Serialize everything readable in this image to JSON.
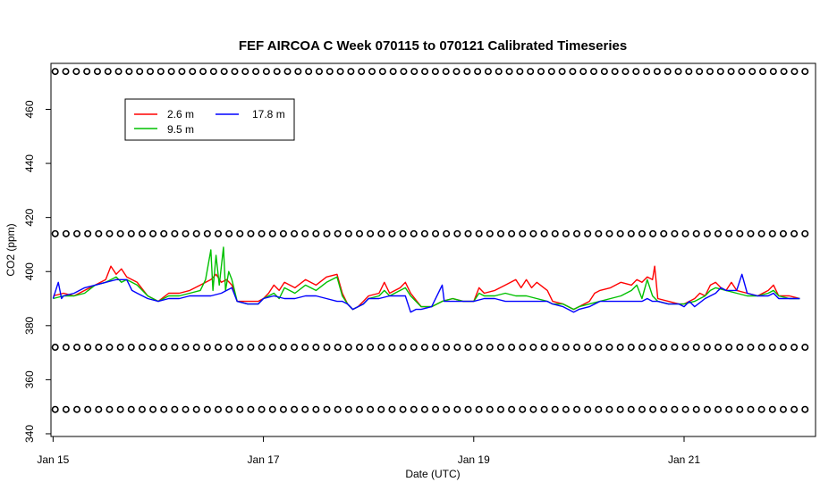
{
  "chart_data": {
    "type": "line",
    "title": "FEF AIRCOA C  Week 070115 to 070121  Calibrated Timeseries",
    "xlabel": "Date (UTC)",
    "ylabel": "CO2 (ppm)",
    "x_ticks": [
      {
        "day": 15,
        "label": "Jan 15"
      },
      {
        "day": 17,
        "label": "Jan 17"
      },
      {
        "day": 19,
        "label": "Jan 19"
      },
      {
        "day": 21,
        "label": "Jan 21"
      }
    ],
    "y_ticks": [
      340,
      360,
      380,
      400,
      420,
      440,
      460
    ],
    "xlim": [
      14.98,
      22.25
    ],
    "ylim": [
      339,
      477
    ],
    "grid": false,
    "legend_position": "top-left",
    "series": [
      {
        "name": "2.6 m",
        "color": "#ff0000",
        "points": [
          [
            15.0,
            391
          ],
          [
            15.1,
            392
          ],
          [
            15.2,
            391
          ],
          [
            15.3,
            393
          ],
          [
            15.4,
            395
          ],
          [
            15.5,
            397
          ],
          [
            15.55,
            402
          ],
          [
            15.6,
            399
          ],
          [
            15.65,
            401
          ],
          [
            15.7,
            398
          ],
          [
            15.8,
            396
          ],
          [
            15.9,
            391
          ],
          [
            16.0,
            389
          ],
          [
            16.1,
            392
          ],
          [
            16.2,
            392
          ],
          [
            16.3,
            393
          ],
          [
            16.4,
            395
          ],
          [
            16.5,
            397
          ],
          [
            16.55,
            399
          ],
          [
            16.6,
            396
          ],
          [
            16.65,
            397
          ],
          [
            16.7,
            395
          ],
          [
            16.75,
            389
          ],
          [
            16.85,
            389
          ],
          [
            16.95,
            389
          ],
          [
            17.0,
            390
          ],
          [
            17.05,
            392
          ],
          [
            17.1,
            395
          ],
          [
            17.15,
            393
          ],
          [
            17.2,
            396
          ],
          [
            17.3,
            394
          ],
          [
            17.4,
            397
          ],
          [
            17.5,
            395
          ],
          [
            17.6,
            398
          ],
          [
            17.7,
            399
          ],
          [
            17.75,
            392
          ],
          [
            17.8,
            388
          ],
          [
            17.85,
            386
          ],
          [
            17.9,
            387
          ],
          [
            17.95,
            389
          ],
          [
            18.0,
            391
          ],
          [
            18.1,
            392
          ],
          [
            18.15,
            396
          ],
          [
            18.2,
            392
          ],
          [
            18.3,
            394
          ],
          [
            18.35,
            396
          ],
          [
            18.4,
            392
          ],
          [
            18.5,
            387
          ],
          [
            18.6,
            387
          ],
          [
            18.7,
            389
          ],
          [
            18.8,
            390
          ],
          [
            18.9,
            389
          ],
          [
            19.0,
            389
          ],
          [
            19.05,
            394
          ],
          [
            19.1,
            392
          ],
          [
            19.2,
            393
          ],
          [
            19.3,
            395
          ],
          [
            19.4,
            397
          ],
          [
            19.45,
            394
          ],
          [
            19.5,
            397
          ],
          [
            19.55,
            394
          ],
          [
            19.6,
            396
          ],
          [
            19.7,
            393
          ],
          [
            19.75,
            389
          ],
          [
            19.85,
            388
          ],
          [
            19.95,
            386
          ],
          [
            20.0,
            387
          ],
          [
            20.1,
            389
          ],
          [
            20.15,
            392
          ],
          [
            20.2,
            393
          ],
          [
            20.3,
            394
          ],
          [
            20.4,
            396
          ],
          [
            20.5,
            395
          ],
          [
            20.55,
            397
          ],
          [
            20.6,
            396
          ],
          [
            20.65,
            398
          ],
          [
            20.7,
            397
          ],
          [
            20.72,
            402
          ],
          [
            20.75,
            390
          ],
          [
            20.85,
            389
          ],
          [
            20.95,
            388
          ],
          [
            21.0,
            388
          ],
          [
            21.1,
            390
          ],
          [
            21.15,
            392
          ],
          [
            21.2,
            391
          ],
          [
            21.25,
            395
          ],
          [
            21.3,
            396
          ],
          [
            21.35,
            394
          ],
          [
            21.4,
            393
          ],
          [
            21.45,
            396
          ],
          [
            21.5,
            393
          ],
          [
            21.6,
            392
          ],
          [
            21.7,
            391
          ],
          [
            21.8,
            393
          ],
          [
            21.85,
            395
          ],
          [
            21.9,
            391
          ],
          [
            22.0,
            391
          ],
          [
            22.1,
            390
          ]
        ]
      },
      {
        "name": "9.5 m",
        "color": "#00c000",
        "points": [
          [
            15.0,
            390
          ],
          [
            15.1,
            391
          ],
          [
            15.2,
            391
          ],
          [
            15.3,
            392
          ],
          [
            15.4,
            395
          ],
          [
            15.5,
            396
          ],
          [
            15.6,
            398
          ],
          [
            15.65,
            396
          ],
          [
            15.7,
            397
          ],
          [
            15.8,
            395
          ],
          [
            15.9,
            391
          ],
          [
            16.0,
            389
          ],
          [
            16.1,
            391
          ],
          [
            16.2,
            391
          ],
          [
            16.3,
            392
          ],
          [
            16.4,
            393
          ],
          [
            16.45,
            397
          ],
          [
            16.5,
            408
          ],
          [
            16.52,
            393
          ],
          [
            16.55,
            406
          ],
          [
            16.58,
            395
          ],
          [
            16.62,
            409
          ],
          [
            16.64,
            393
          ],
          [
            16.67,
            400
          ],
          [
            16.7,
            397
          ],
          [
            16.75,
            389
          ],
          [
            16.85,
            388
          ],
          [
            16.95,
            388
          ],
          [
            17.0,
            390
          ],
          [
            17.1,
            392
          ],
          [
            17.15,
            390
          ],
          [
            17.2,
            394
          ],
          [
            17.3,
            392
          ],
          [
            17.4,
            395
          ],
          [
            17.5,
            393
          ],
          [
            17.6,
            396
          ],
          [
            17.7,
            398
          ],
          [
            17.75,
            391
          ],
          [
            17.8,
            388
          ],
          [
            17.85,
            386
          ],
          [
            17.9,
            387
          ],
          [
            17.95,
            388
          ],
          [
            18.0,
            390
          ],
          [
            18.1,
            391
          ],
          [
            18.15,
            393
          ],
          [
            18.2,
            391
          ],
          [
            18.3,
            393
          ],
          [
            18.35,
            394
          ],
          [
            18.4,
            391
          ],
          [
            18.5,
            387
          ],
          [
            18.6,
            387
          ],
          [
            18.7,
            389
          ],
          [
            18.8,
            390
          ],
          [
            18.9,
            389
          ],
          [
            19.0,
            389
          ],
          [
            19.05,
            392
          ],
          [
            19.1,
            391
          ],
          [
            19.2,
            391
          ],
          [
            19.3,
            392
          ],
          [
            19.4,
            391
          ],
          [
            19.5,
            391
          ],
          [
            19.6,
            390
          ],
          [
            19.7,
            389
          ],
          [
            19.75,
            388
          ],
          [
            19.85,
            388
          ],
          [
            19.95,
            386
          ],
          [
            20.0,
            387
          ],
          [
            20.1,
            388
          ],
          [
            20.2,
            389
          ],
          [
            20.3,
            390
          ],
          [
            20.4,
            391
          ],
          [
            20.5,
            393
          ],
          [
            20.55,
            395
          ],
          [
            20.6,
            390
          ],
          [
            20.65,
            397
          ],
          [
            20.7,
            391
          ],
          [
            20.75,
            389
          ],
          [
            20.85,
            388
          ],
          [
            20.95,
            388
          ],
          [
            21.0,
            388
          ],
          [
            21.1,
            389
          ],
          [
            21.2,
            391
          ],
          [
            21.25,
            393
          ],
          [
            21.3,
            394
          ],
          [
            21.4,
            393
          ],
          [
            21.5,
            392
          ],
          [
            21.6,
            391
          ],
          [
            21.7,
            391
          ],
          [
            21.8,
            392
          ],
          [
            21.85,
            393
          ],
          [
            21.9,
            391
          ],
          [
            22.0,
            390
          ],
          [
            22.1,
            390
          ]
        ]
      },
      {
        "name": "17.8 m",
        "color": "#0000ff",
        "points": [
          [
            15.0,
            390
          ],
          [
            15.05,
            396
          ],
          [
            15.08,
            390
          ],
          [
            15.1,
            391
          ],
          [
            15.2,
            392
          ],
          [
            15.3,
            394
          ],
          [
            15.4,
            395
          ],
          [
            15.5,
            396
          ],
          [
            15.6,
            397
          ],
          [
            15.7,
            397
          ],
          [
            15.75,
            393
          ],
          [
            15.8,
            392
          ],
          [
            15.9,
            390
          ],
          [
            16.0,
            389
          ],
          [
            16.1,
            390
          ],
          [
            16.2,
            390
          ],
          [
            16.3,
            391
          ],
          [
            16.4,
            391
          ],
          [
            16.5,
            391
          ],
          [
            16.6,
            392
          ],
          [
            16.65,
            393
          ],
          [
            16.7,
            394
          ],
          [
            16.75,
            389
          ],
          [
            16.85,
            388
          ],
          [
            16.95,
            388
          ],
          [
            17.0,
            390
          ],
          [
            17.1,
            391
          ],
          [
            17.2,
            390
          ],
          [
            17.3,
            390
          ],
          [
            17.4,
            391
          ],
          [
            17.5,
            391
          ],
          [
            17.6,
            390
          ],
          [
            17.7,
            389
          ],
          [
            17.75,
            389
          ],
          [
            17.8,
            388
          ],
          [
            17.85,
            386
          ],
          [
            17.9,
            387
          ],
          [
            17.95,
            388
          ],
          [
            18.0,
            390
          ],
          [
            18.1,
            390
          ],
          [
            18.2,
            391
          ],
          [
            18.3,
            391
          ],
          [
            18.35,
            391
          ],
          [
            18.4,
            385
          ],
          [
            18.45,
            386
          ],
          [
            18.5,
            386
          ],
          [
            18.6,
            387
          ],
          [
            18.7,
            395
          ],
          [
            18.72,
            389
          ],
          [
            18.8,
            389
          ],
          [
            18.9,
            389
          ],
          [
            19.0,
            389
          ],
          [
            19.1,
            390
          ],
          [
            19.2,
            390
          ],
          [
            19.3,
            389
          ],
          [
            19.4,
            389
          ],
          [
            19.5,
            389
          ],
          [
            19.6,
            389
          ],
          [
            19.7,
            389
          ],
          [
            19.75,
            388
          ],
          [
            19.85,
            387
          ],
          [
            19.95,
            385
          ],
          [
            20.0,
            386
          ],
          [
            20.1,
            387
          ],
          [
            20.2,
            389
          ],
          [
            20.3,
            389
          ],
          [
            20.4,
            389
          ],
          [
            20.5,
            389
          ],
          [
            20.55,
            389
          ],
          [
            20.6,
            389
          ],
          [
            20.65,
            390
          ],
          [
            20.7,
            389
          ],
          [
            20.75,
            389
          ],
          [
            20.85,
            388
          ],
          [
            20.95,
            388
          ],
          [
            21.0,
            387
          ],
          [
            21.05,
            389
          ],
          [
            21.1,
            387
          ],
          [
            21.2,
            390
          ],
          [
            21.3,
            392
          ],
          [
            21.35,
            394
          ],
          [
            21.4,
            393
          ],
          [
            21.5,
            393
          ],
          [
            21.55,
            399
          ],
          [
            21.6,
            392
          ],
          [
            21.7,
            391
          ],
          [
            21.8,
            391
          ],
          [
            21.85,
            392
          ],
          [
            21.9,
            390
          ],
          [
            22.0,
            390
          ],
          [
            22.1,
            390
          ]
        ]
      }
    ],
    "marker_rows": [
      {
        "y": 474,
        "count": 72
      },
      {
        "y": 414,
        "count": 70
      },
      {
        "y": 372,
        "count": 70
      },
      {
        "y": 349,
        "count": 70
      }
    ]
  }
}
